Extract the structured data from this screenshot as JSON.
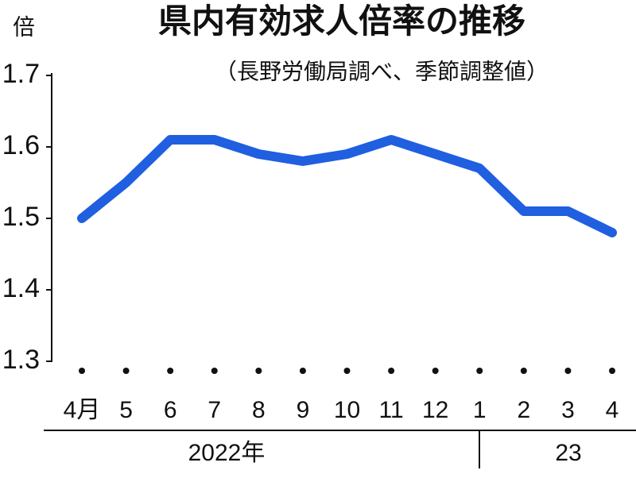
{
  "chart_data": {
    "type": "line",
    "title": "県内有効求人倍率の推移",
    "subtitle": "（長野労働局調べ、季節調整値）",
    "y_label": "倍",
    "categories": [
      "4月",
      "5",
      "6",
      "7",
      "8",
      "9",
      "10",
      "11",
      "12",
      "1",
      "2",
      "3",
      "4"
    ],
    "values": [
      1.5,
      1.55,
      1.61,
      1.61,
      1.59,
      1.58,
      1.59,
      1.61,
      1.59,
      1.57,
      1.51,
      1.51,
      1.48
    ],
    "color": "#1f5fe0",
    "ylim": [
      1.3,
      1.7
    ],
    "yticks": [
      1.3,
      1.4,
      1.5,
      1.6,
      1.7
    ],
    "grid": false,
    "year_labels": [
      "2022年",
      "23"
    ]
  }
}
